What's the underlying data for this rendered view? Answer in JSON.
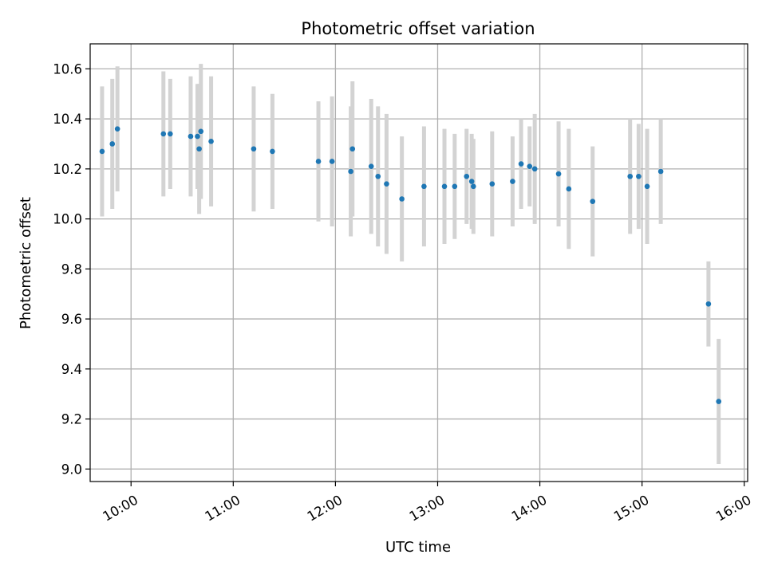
{
  "chart_data": {
    "type": "scatter",
    "title": "Photometric offset variation",
    "xlabel": "UTC time",
    "ylabel": "Photometric offset",
    "x_ticks": [
      "10:00",
      "11:00",
      "12:00",
      "13:00",
      "14:00",
      "15:00",
      "16:00"
    ],
    "y_ticks": [
      "9.0",
      "9.2",
      "9.4",
      "9.6",
      "9.8",
      "10.0",
      "10.2",
      "10.4",
      "10.6"
    ],
    "xlim": [
      "09:36",
      "16:02"
    ],
    "ylim": [
      8.95,
      10.7
    ],
    "grid": true,
    "colors": {
      "point": "#1f77b4",
      "errorbar": "#d3d3d3",
      "grid": "#b0b0b0"
    },
    "series": [
      {
        "points": [
          {
            "x": "09:43",
            "y": 10.27,
            "yerr": 0.26
          },
          {
            "x": "09:49",
            "y": 10.3,
            "yerr": 0.26
          },
          {
            "x": "09:52",
            "y": 10.36,
            "yerr": 0.25
          },
          {
            "x": "10:19",
            "y": 10.34,
            "yerr": 0.25
          },
          {
            "x": "10:23",
            "y": 10.34,
            "yerr": 0.22
          },
          {
            "x": "10:35",
            "y": 10.33,
            "yerr": 0.24
          },
          {
            "x": "10:39",
            "y": 10.33,
            "yerr": 0.21
          },
          {
            "x": "10:40",
            "y": 10.28,
            "yerr": 0.26
          },
          {
            "x": "10:41",
            "y": 10.35,
            "yerr": 0.27
          },
          {
            "x": "10:47",
            "y": 10.31,
            "yerr": 0.26
          },
          {
            "x": "11:12",
            "y": 10.28,
            "yerr": 0.25
          },
          {
            "x": "11:23",
            "y": 10.27,
            "yerr": 0.23
          },
          {
            "x": "11:50",
            "y": 10.23,
            "yerr": 0.24
          },
          {
            "x": "11:58",
            "y": 10.23,
            "yerr": 0.26
          },
          {
            "x": "12:09",
            "y": 10.19,
            "yerr": 0.26
          },
          {
            "x": "12:10",
            "y": 10.28,
            "yerr": 0.27
          },
          {
            "x": "12:21",
            "y": 10.21,
            "yerr": 0.27
          },
          {
            "x": "12:25",
            "y": 10.17,
            "yerr": 0.28
          },
          {
            "x": "12:30",
            "y": 10.14,
            "yerr": 0.28
          },
          {
            "x": "12:39",
            "y": 10.08,
            "yerr": 0.25
          },
          {
            "x": "12:52",
            "y": 10.13,
            "yerr": 0.24
          },
          {
            "x": "13:04",
            "y": 10.13,
            "yerr": 0.23
          },
          {
            "x": "13:10",
            "y": 10.13,
            "yerr": 0.21
          },
          {
            "x": "13:17",
            "y": 10.17,
            "yerr": 0.19
          },
          {
            "x": "13:20",
            "y": 10.15,
            "yerr": 0.19
          },
          {
            "x": "13:21",
            "y": 10.13,
            "yerr": 0.19
          },
          {
            "x": "13:32",
            "y": 10.14,
            "yerr": 0.21
          },
          {
            "x": "13:44",
            "y": 10.15,
            "yerr": 0.18
          },
          {
            "x": "13:49",
            "y": 10.22,
            "yerr": 0.18
          },
          {
            "x": "13:54",
            "y": 10.21,
            "yerr": 0.16
          },
          {
            "x": "13:57",
            "y": 10.2,
            "yerr": 0.22
          },
          {
            "x": "14:11",
            "y": 10.18,
            "yerr": 0.21
          },
          {
            "x": "14:17",
            "y": 10.12,
            "yerr": 0.24
          },
          {
            "x": "14:31",
            "y": 10.07,
            "yerr": 0.22
          },
          {
            "x": "14:53",
            "y": 10.17,
            "yerr": 0.23
          },
          {
            "x": "14:58",
            "y": 10.17,
            "yerr": 0.21
          },
          {
            "x": "15:03",
            "y": 10.13,
            "yerr": 0.23
          },
          {
            "x": "15:11",
            "y": 10.19,
            "yerr": 0.21
          },
          {
            "x": "15:39",
            "y": 9.66,
            "yerr": 0.17
          },
          {
            "x": "15:45",
            "y": 9.27,
            "yerr": 0.25
          }
        ]
      }
    ]
  }
}
